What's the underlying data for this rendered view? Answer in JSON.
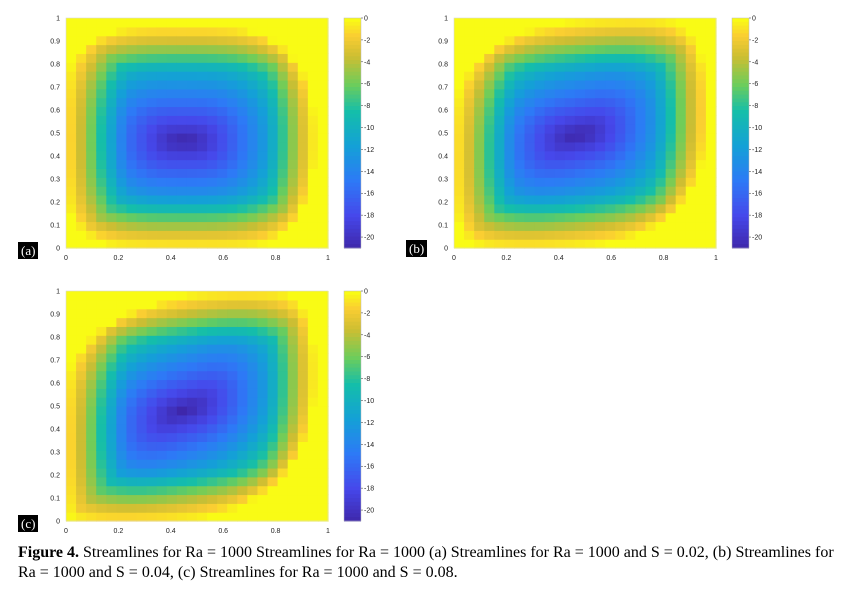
{
  "caption": {
    "label": "Figure 4.",
    "text": "Streamlines for Ra = 1000 Streamlines for Ra = 1000 (a) Streamlines for Ra = 1000 and S = 0.02, (b) Streamlines for Ra = 1000 and S = 0.04, (c) Streamlines for Ra = 1000 and S = 0.08."
  },
  "chart_data": [
    {
      "type": "heatmap",
      "panel_label": "(a)",
      "xlim": [
        0,
        1
      ],
      "ylim": [
        0,
        1
      ],
      "x_ticks": [
        "0",
        "0.2",
        "0.4",
        "0.6",
        "0.8",
        "1"
      ],
      "y_ticks": [
        "0",
        "0.1",
        "0.2",
        "0.3",
        "0.4",
        "0.5",
        "0.6",
        "0.7",
        "0.8",
        "0.9",
        "1"
      ],
      "colorbar": {
        "min": -21,
        "max": 0,
        "ticks": [
          "0",
          "-2",
          "-4",
          "-6",
          "-8",
          "-10",
          "-12",
          "-14",
          "-16",
          "-18",
          "-20"
        ]
      },
      "field": {
        "min_value": -21,
        "center": [
          0.45,
          0.47
        ],
        "tilt": 0.0
      }
    },
    {
      "type": "heatmap",
      "panel_label": "(b)",
      "xlim": [
        0,
        1
      ],
      "ylim": [
        0,
        1
      ],
      "x_ticks": [
        "0",
        "0.2",
        "0.4",
        "0.6",
        "0.8",
        "1"
      ],
      "y_ticks": [
        "0",
        "0.1",
        "0.2",
        "0.3",
        "0.4",
        "0.5",
        "0.6",
        "0.7",
        "0.8",
        "0.9",
        "1"
      ],
      "colorbar": {
        "min": -21,
        "max": 0,
        "ticks": [
          "0",
          "-2",
          "-4",
          "-6",
          "-8",
          "-10",
          "-12",
          "-14",
          "-16",
          "-18",
          "-20"
        ]
      },
      "field": {
        "min_value": -21,
        "center": [
          0.47,
          0.5
        ],
        "tilt": 0.22
      }
    },
    {
      "type": "heatmap",
      "panel_label": "(c)",
      "xlim": [
        0,
        1
      ],
      "ylim": [
        0,
        1
      ],
      "x_ticks": [
        "0",
        "0.2",
        "0.4",
        "0.6",
        "0.8",
        "1"
      ],
      "y_ticks": [
        "0",
        "0.1",
        "0.2",
        "0.3",
        "0.4",
        "0.5",
        "0.6",
        "0.7",
        "0.8",
        "0.9",
        "1"
      ],
      "colorbar": {
        "min": -21,
        "max": 0,
        "ticks": [
          "0",
          "-2",
          "-4",
          "-6",
          "-8",
          "-10",
          "-12",
          "-14",
          "-16",
          "-18",
          "-20"
        ]
      },
      "field": {
        "min_value": -21,
        "center": [
          0.45,
          0.5
        ],
        "tilt": 0.32
      }
    }
  ]
}
